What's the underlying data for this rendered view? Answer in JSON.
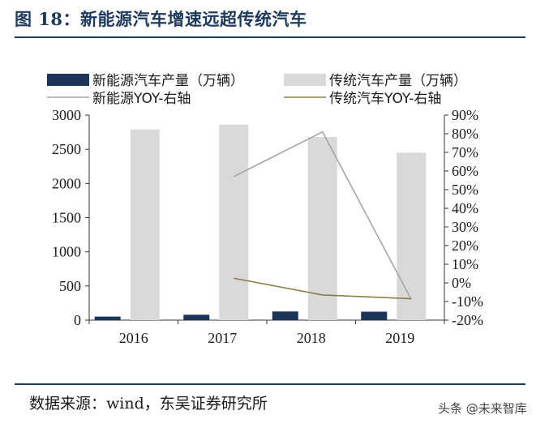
{
  "header": {
    "title": "图 18：新能源汽车增速远超传统汽车"
  },
  "footer": {
    "source": "数据来源：wind，东吴证券研究所",
    "watermark": "头条 @未来智库"
  },
  "colors": {
    "nev_bar": "#1c3459",
    "trad_bar": "#d9d9d9",
    "nev_line": "#a6a6a6",
    "trad_line": "#8b7d4a",
    "title": "#1f3a5c"
  },
  "chart_data": {
    "type": "bar",
    "title": "新能源汽车增速远超传统汽车",
    "categories": [
      "2016",
      "2017",
      "2018",
      "2019"
    ],
    "series": [
      {
        "name": "新能源汽车产量（万辆）",
        "type": "bar",
        "axis": "left",
        "values": [
          52,
          79,
          127,
          124
        ]
      },
      {
        "name": "传统汽车产量（万辆）",
        "type": "bar",
        "axis": "left",
        "values": [
          2790,
          2860,
          2680,
          2450
        ]
      },
      {
        "name": "新能源YOY-右轴",
        "type": "line",
        "axis": "right",
        "values": [
          null,
          57,
          81,
          -9
        ]
      },
      {
        "name": "传统汽车YOY-右轴",
        "type": "line",
        "axis": "right",
        "values": [
          null,
          2.5,
          -6.5,
          -8.5
        ]
      }
    ],
    "left_axis": {
      "ylim": [
        0,
        3000
      ],
      "ticks": [
        0,
        500,
        1000,
        1500,
        2000,
        2500,
        3000
      ]
    },
    "right_axis": {
      "ylim": [
        -20,
        90
      ],
      "ticks": [
        "-20%",
        "-10%",
        "0%",
        "10%",
        "20%",
        "30%",
        "40%",
        "50%",
        "60%",
        "70%",
        "80%",
        "90%"
      ]
    },
    "legend": [
      {
        "label": "新能源汽车产量（万辆）",
        "kind": "bar",
        "series": 0
      },
      {
        "label": "传统汽车产量（万辆）",
        "kind": "bar",
        "series": 1
      },
      {
        "label": "新能源YOY-右轴",
        "kind": "line",
        "series": 2
      },
      {
        "label": "传统汽车YOY-右轴",
        "kind": "line",
        "series": 3
      }
    ],
    "legend_position": "top",
    "grid": false
  }
}
